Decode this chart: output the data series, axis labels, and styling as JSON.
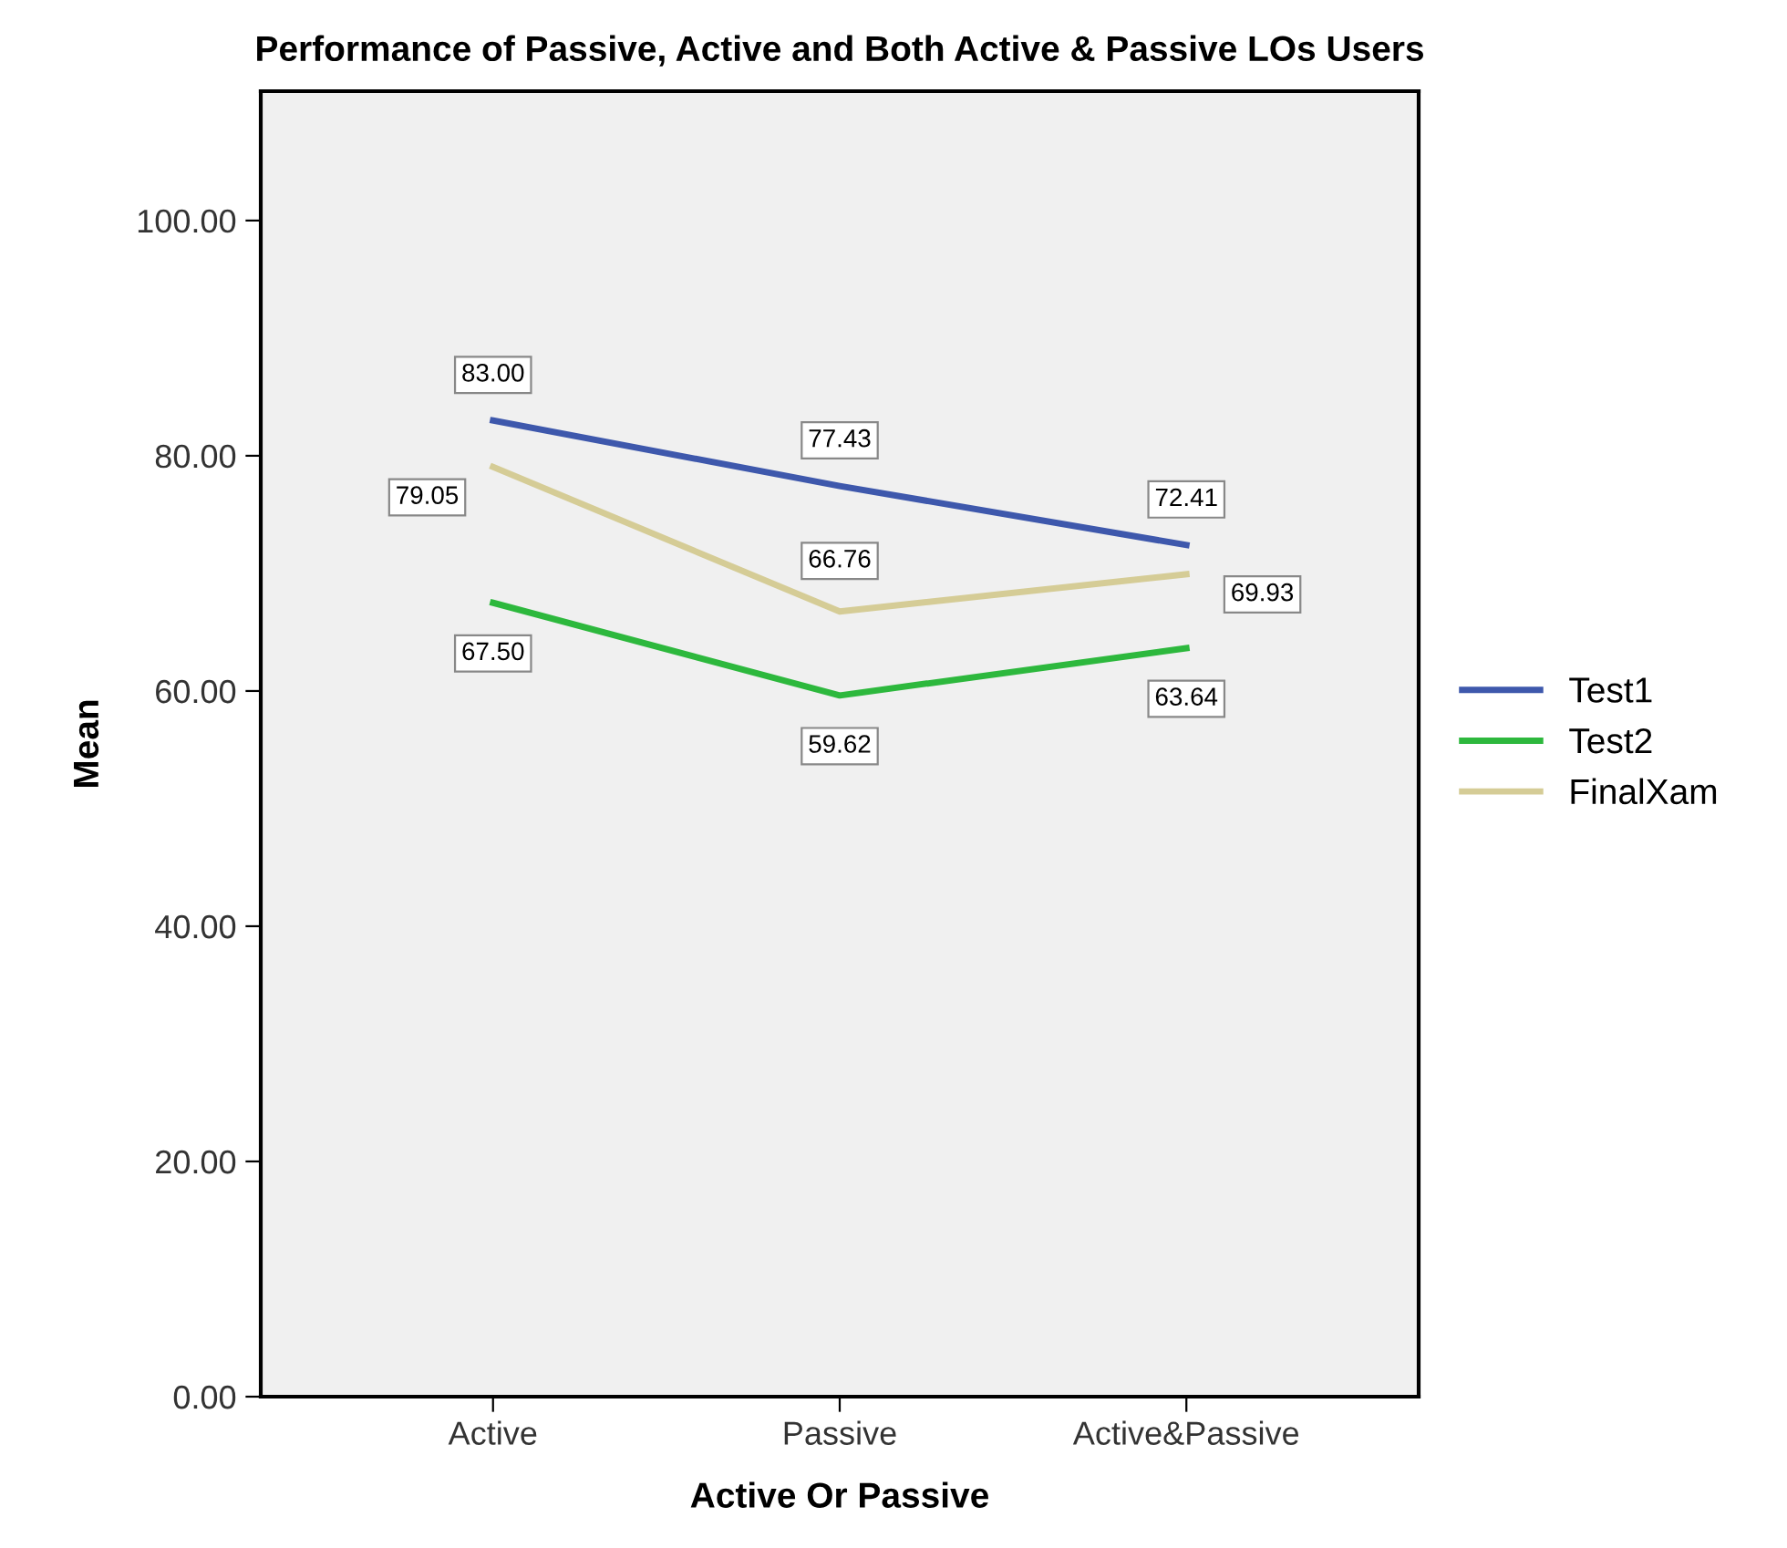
{
  "chart_data": {
    "type": "line",
    "title": "Performance of Passive, Active and Both Active & Passive LOs Users",
    "xlabel": "Active Or Passive",
    "ylabel": "Mean",
    "categories": [
      "Active",
      "Passive",
      "Active&Passive"
    ],
    "series": [
      {
        "name": "Test1",
        "color": "#3e58ac",
        "values": [
          83.0,
          77.43,
          72.41
        ],
        "value_labels": [
          "83.00",
          "77.43",
          "72.41"
        ]
      },
      {
        "name": "Test2",
        "color": "#2db83d",
        "values": [
          67.5,
          59.62,
          63.64
        ],
        "value_labels": [
          "67.50",
          "59.62",
          "63.64"
        ]
      },
      {
        "name": "FinalXam",
        "color": "#d5cc96",
        "values": [
          79.05,
          66.76,
          69.93
        ],
        "value_labels": [
          "79.05",
          "66.76",
          "69.93"
        ]
      }
    ],
    "ylim": [
      0,
      111
    ],
    "yticks": [
      {
        "value": 0,
        "label": "0.00"
      },
      {
        "value": 20,
        "label": "20.00"
      },
      {
        "value": 40,
        "label": "40.00"
      },
      {
        "value": 60,
        "label": "60.00"
      },
      {
        "value": 80,
        "label": "80.00"
      },
      {
        "value": 100,
        "label": "100.00"
      }
    ],
    "grid": false,
    "legend": "right",
    "marker": "none",
    "line_style": "solid"
  }
}
